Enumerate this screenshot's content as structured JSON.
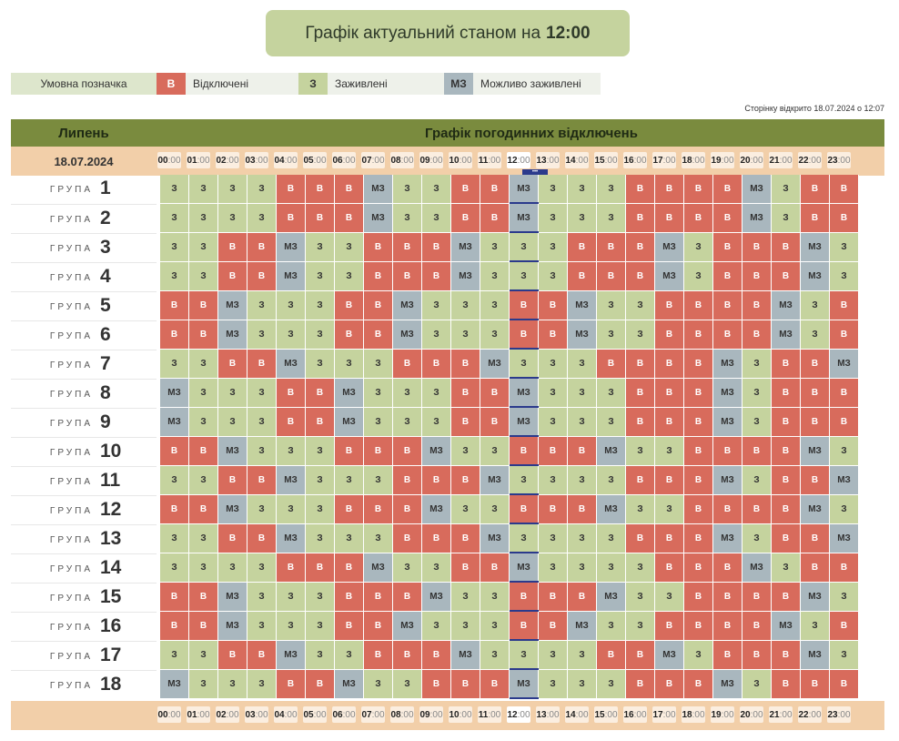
{
  "banner": {
    "prefix": "Графік актуальний станом на",
    "time": "12:00"
  },
  "legend": {
    "title": "Умовна позначка",
    "items": [
      {
        "code": "В",
        "label": "Відключені"
      },
      {
        "code": "З",
        "label": "Заживлені"
      },
      {
        "code": "МЗ",
        "label": "Можливо заживлені"
      }
    ]
  },
  "opened": "Сторінку відкрито 18.07.2024 о 12:07",
  "table": {
    "month": "Липень",
    "title": "Графік погодинних відключень",
    "date": "18.07.2024",
    "group_word": "ГРУПА",
    "current_hour_index": 12,
    "hours": [
      "00",
      "01",
      "02",
      "03",
      "04",
      "05",
      "06",
      "07",
      "08",
      "09",
      "10",
      "11",
      "12",
      "13",
      "14",
      "15",
      "16",
      "17",
      "18",
      "19",
      "20",
      "21",
      "22",
      "23"
    ],
    "minutes": ":00",
    "codes": {
      "b": "В",
      "z": "З",
      "mz": "МЗ"
    },
    "colors": {
      "b": "#d86b5c",
      "z": "#c5d39e",
      "mz": "#a9b7be"
    },
    "groups": [
      {
        "num": "1",
        "cells": [
          "z",
          "z",
          "z",
          "z",
          "b",
          "b",
          "b",
          "mz",
          "z",
          "z",
          "b",
          "b",
          "mz",
          "z",
          "z",
          "z",
          "b",
          "b",
          "b",
          "b",
          "mz",
          "z",
          "b",
          "b"
        ]
      },
      {
        "num": "2",
        "cells": [
          "z",
          "z",
          "z",
          "z",
          "b",
          "b",
          "b",
          "mz",
          "z",
          "z",
          "b",
          "b",
          "mz",
          "z",
          "z",
          "z",
          "b",
          "b",
          "b",
          "b",
          "mz",
          "z",
          "b",
          "b"
        ]
      },
      {
        "num": "3",
        "cells": [
          "z",
          "z",
          "b",
          "b",
          "mz",
          "z",
          "z",
          "b",
          "b",
          "b",
          "mz",
          "z",
          "z",
          "z",
          "b",
          "b",
          "b",
          "mz",
          "z",
          "b",
          "b",
          "b",
          "mz",
          "z"
        ]
      },
      {
        "num": "4",
        "cells": [
          "z",
          "z",
          "b",
          "b",
          "mz",
          "z",
          "z",
          "b",
          "b",
          "b",
          "mz",
          "z",
          "z",
          "z",
          "b",
          "b",
          "b",
          "mz",
          "z",
          "b",
          "b",
          "b",
          "mz",
          "z"
        ]
      },
      {
        "num": "5",
        "cells": [
          "b",
          "b",
          "mz",
          "z",
          "z",
          "z",
          "b",
          "b",
          "mz",
          "z",
          "z",
          "z",
          "b",
          "b",
          "mz",
          "z",
          "z",
          "b",
          "b",
          "b",
          "b",
          "mz",
          "z",
          "b"
        ]
      },
      {
        "num": "6",
        "cells": [
          "b",
          "b",
          "mz",
          "z",
          "z",
          "z",
          "b",
          "b",
          "mz",
          "z",
          "z",
          "z",
          "b",
          "b",
          "mz",
          "z",
          "z",
          "b",
          "b",
          "b",
          "b",
          "mz",
          "z",
          "b"
        ]
      },
      {
        "num": "7",
        "cells": [
          "z",
          "z",
          "b",
          "b",
          "mz",
          "z",
          "z",
          "z",
          "b",
          "b",
          "b",
          "mz",
          "z",
          "z",
          "z",
          "b",
          "b",
          "b",
          "b",
          "mz",
          "z",
          "b",
          "b",
          "mz"
        ]
      },
      {
        "num": "8",
        "cells": [
          "mz",
          "z",
          "z",
          "z",
          "b",
          "b",
          "mz",
          "z",
          "z",
          "z",
          "b",
          "b",
          "mz",
          "z",
          "z",
          "z",
          "b",
          "b",
          "b",
          "mz",
          "z",
          "b",
          "b",
          "b"
        ]
      },
      {
        "num": "9",
        "cells": [
          "mz",
          "z",
          "z",
          "z",
          "b",
          "b",
          "mz",
          "z",
          "z",
          "z",
          "b",
          "b",
          "mz",
          "z",
          "z",
          "z",
          "b",
          "b",
          "b",
          "mz",
          "z",
          "b",
          "b",
          "b"
        ]
      },
      {
        "num": "10",
        "cells": [
          "b",
          "b",
          "mz",
          "z",
          "z",
          "z",
          "b",
          "b",
          "b",
          "mz",
          "z",
          "z",
          "b",
          "b",
          "b",
          "mz",
          "z",
          "z",
          "b",
          "b",
          "b",
          "b",
          "mz",
          "z"
        ]
      },
      {
        "num": "11",
        "cells": [
          "z",
          "z",
          "b",
          "b",
          "mz",
          "z",
          "z",
          "z",
          "b",
          "b",
          "b",
          "mz",
          "z",
          "z",
          "z",
          "z",
          "b",
          "b",
          "b",
          "mz",
          "z",
          "b",
          "b",
          "mz"
        ]
      },
      {
        "num": "12",
        "cells": [
          "b",
          "b",
          "mz",
          "z",
          "z",
          "z",
          "b",
          "b",
          "b",
          "mz",
          "z",
          "z",
          "b",
          "b",
          "b",
          "mz",
          "z",
          "z",
          "b",
          "b",
          "b",
          "b",
          "mz",
          "z"
        ]
      },
      {
        "num": "13",
        "cells": [
          "z",
          "z",
          "b",
          "b",
          "mz",
          "z",
          "z",
          "z",
          "b",
          "b",
          "b",
          "mz",
          "z",
          "z",
          "z",
          "z",
          "b",
          "b",
          "b",
          "mz",
          "z",
          "b",
          "b",
          "mz"
        ]
      },
      {
        "num": "14",
        "cells": [
          "z",
          "z",
          "z",
          "z",
          "b",
          "b",
          "b",
          "mz",
          "z",
          "z",
          "b",
          "b",
          "mz",
          "z",
          "z",
          "z",
          "z",
          "b",
          "b",
          "b",
          "mz",
          "z",
          "b",
          "b"
        ]
      },
      {
        "num": "15",
        "cells": [
          "b",
          "b",
          "mz",
          "z",
          "z",
          "z",
          "b",
          "b",
          "b",
          "mz",
          "z",
          "z",
          "b",
          "b",
          "b",
          "mz",
          "z",
          "z",
          "b",
          "b",
          "b",
          "b",
          "mz",
          "z"
        ]
      },
      {
        "num": "16",
        "cells": [
          "b",
          "b",
          "mz",
          "z",
          "z",
          "z",
          "b",
          "b",
          "mz",
          "z",
          "z",
          "z",
          "b",
          "b",
          "mz",
          "z",
          "z",
          "b",
          "b",
          "b",
          "b",
          "mz",
          "z",
          "b"
        ]
      },
      {
        "num": "17",
        "cells": [
          "z",
          "z",
          "b",
          "b",
          "mz",
          "z",
          "z",
          "b",
          "b",
          "b",
          "mz",
          "z",
          "z",
          "z",
          "z",
          "b",
          "b",
          "mz",
          "z",
          "b",
          "b",
          "b",
          "mz",
          "z"
        ]
      },
      {
        "num": "18",
        "cells": [
          "mz",
          "z",
          "z",
          "z",
          "b",
          "b",
          "mz",
          "z",
          "z",
          "b",
          "b",
          "b",
          "mz",
          "z",
          "z",
          "z",
          "b",
          "b",
          "b",
          "mz",
          "z",
          "b",
          "b",
          "b"
        ]
      }
    ]
  }
}
